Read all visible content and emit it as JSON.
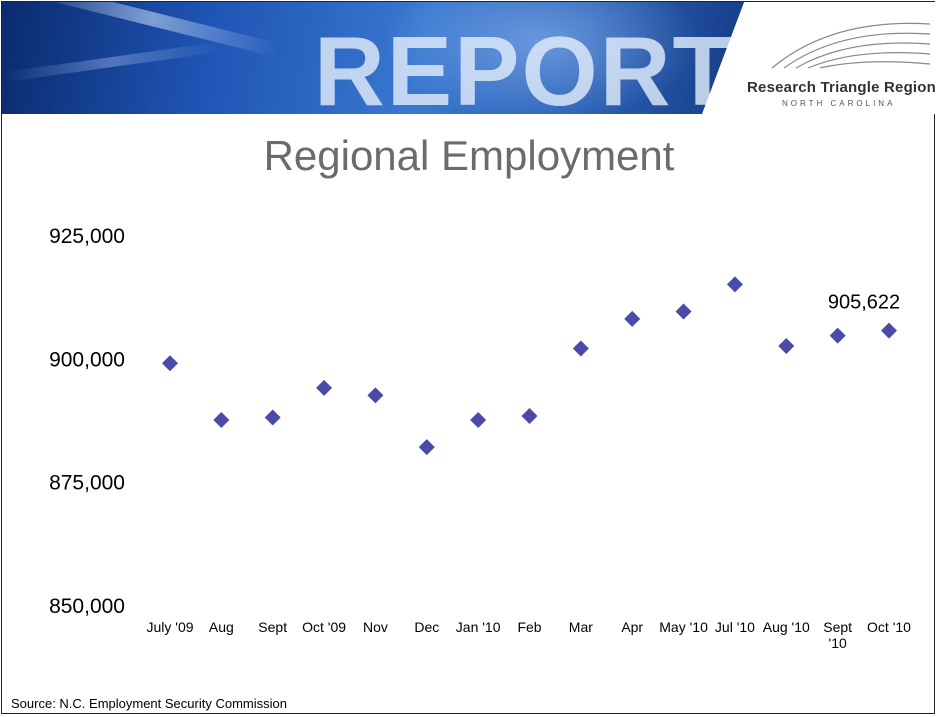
{
  "banner": {
    "report_label": "REPORT",
    "logo_title": "Research Triangle Region",
    "logo_subtitle": "NORTH CAROLINA"
  },
  "colors": {
    "marker": "#4a4aa8",
    "title": "#6b6b6b"
  },
  "chart_data": {
    "type": "scatter",
    "title": "Regional Employment",
    "xlabel": "",
    "ylabel": "",
    "ylim": [
      850000,
      925000
    ],
    "yticks": [
      850000,
      875000,
      900000,
      925000
    ],
    "ytick_labels": [
      "850,000",
      "875,000",
      "900,000",
      "925,000"
    ],
    "grid": false,
    "legend": "none",
    "marker": "diamond",
    "categories": [
      "July '09",
      "Aug",
      "Sept",
      "Oct '09",
      "Nov",
      "Dec",
      "Jan '10",
      "Feb",
      "Mar",
      "Apr",
      "May '10",
      "Jul '10",
      "Aug '10",
      "Sept\n'10",
      "Oct '10"
    ],
    "values": [
      899000,
      887500,
      888000,
      894000,
      892500,
      882000,
      887500,
      888300,
      902000,
      908000,
      909500,
      915000,
      902500,
      904600,
      905622
    ],
    "annotations": [
      {
        "index": 14,
        "text": "905,622"
      }
    ]
  },
  "footer": {
    "source": "Source: N.C. Employment Security Commission"
  }
}
